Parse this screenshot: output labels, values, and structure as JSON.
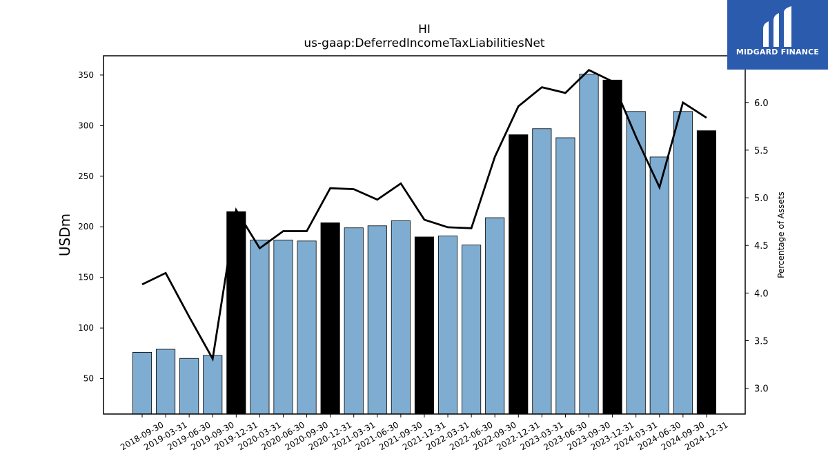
{
  "brand": {
    "name": "MIDGARD FINANCE",
    "bg_color": "#2b5bad"
  },
  "chart_data": {
    "type": "bar",
    "title": "HI",
    "subtitle": "us-gaap:DeferredIncomeTaxLiabilitiesNet",
    "ylabel": "USDm",
    "y2label": "Percentage of Assets",
    "ylim": [
      15,
      369
    ],
    "y2lim": [
      2.73,
      6.49
    ],
    "yticks": [
      50,
      100,
      150,
      200,
      250,
      300,
      350
    ],
    "y2ticks": [
      "3.0",
      "3.5",
      "4.0",
      "4.5",
      "5.0",
      "5.5",
      "6.0"
    ],
    "categories": [
      "2018-09-30",
      "2019-03-31",
      "2019-06-30",
      "2019-09-30",
      "2019-12-31",
      "2020-03-31",
      "2020-06-30",
      "2020-09-30",
      "2020-12-31",
      "2021-03-31",
      "2021-06-30",
      "2021-09-30",
      "2021-12-31",
      "2022-03-31",
      "2022-06-30",
      "2022-09-30",
      "2022-12-31",
      "2023-03-31",
      "2023-06-30",
      "2023-09-30",
      "2023-12-31",
      "2024-03-31",
      "2024-06-30",
      "2024-09-30",
      "2024-12-31"
    ],
    "series": [
      {
        "type": "bar",
        "values": [
          76,
          79,
          70,
          73,
          215,
          187,
          187,
          186,
          204,
          199,
          201,
          206,
          190,
          191,
          182,
          209,
          291,
          297,
          288,
          351,
          345,
          314,
          269,
          314,
          295
        ],
        "highlight": [
          false,
          false,
          false,
          false,
          true,
          false,
          false,
          false,
          true,
          false,
          false,
          false,
          true,
          false,
          false,
          false,
          true,
          false,
          false,
          false,
          true,
          false,
          false,
          false,
          true
        ],
        "color": "#7eadd1",
        "highlight_color": "#000000"
      },
      {
        "type": "line",
        "axis": "right",
        "values": [
          4.09,
          4.21,
          3.75,
          3.31,
          4.87,
          4.47,
          4.65,
          4.65,
          5.1,
          5.09,
          4.98,
          5.15,
          4.77,
          4.69,
          4.68,
          5.43,
          5.96,
          6.16,
          6.1,
          6.34,
          6.22,
          5.64,
          5.11,
          6.0,
          5.84
        ],
        "color": "#000000"
      }
    ],
    "grid": false,
    "legend": "none"
  }
}
